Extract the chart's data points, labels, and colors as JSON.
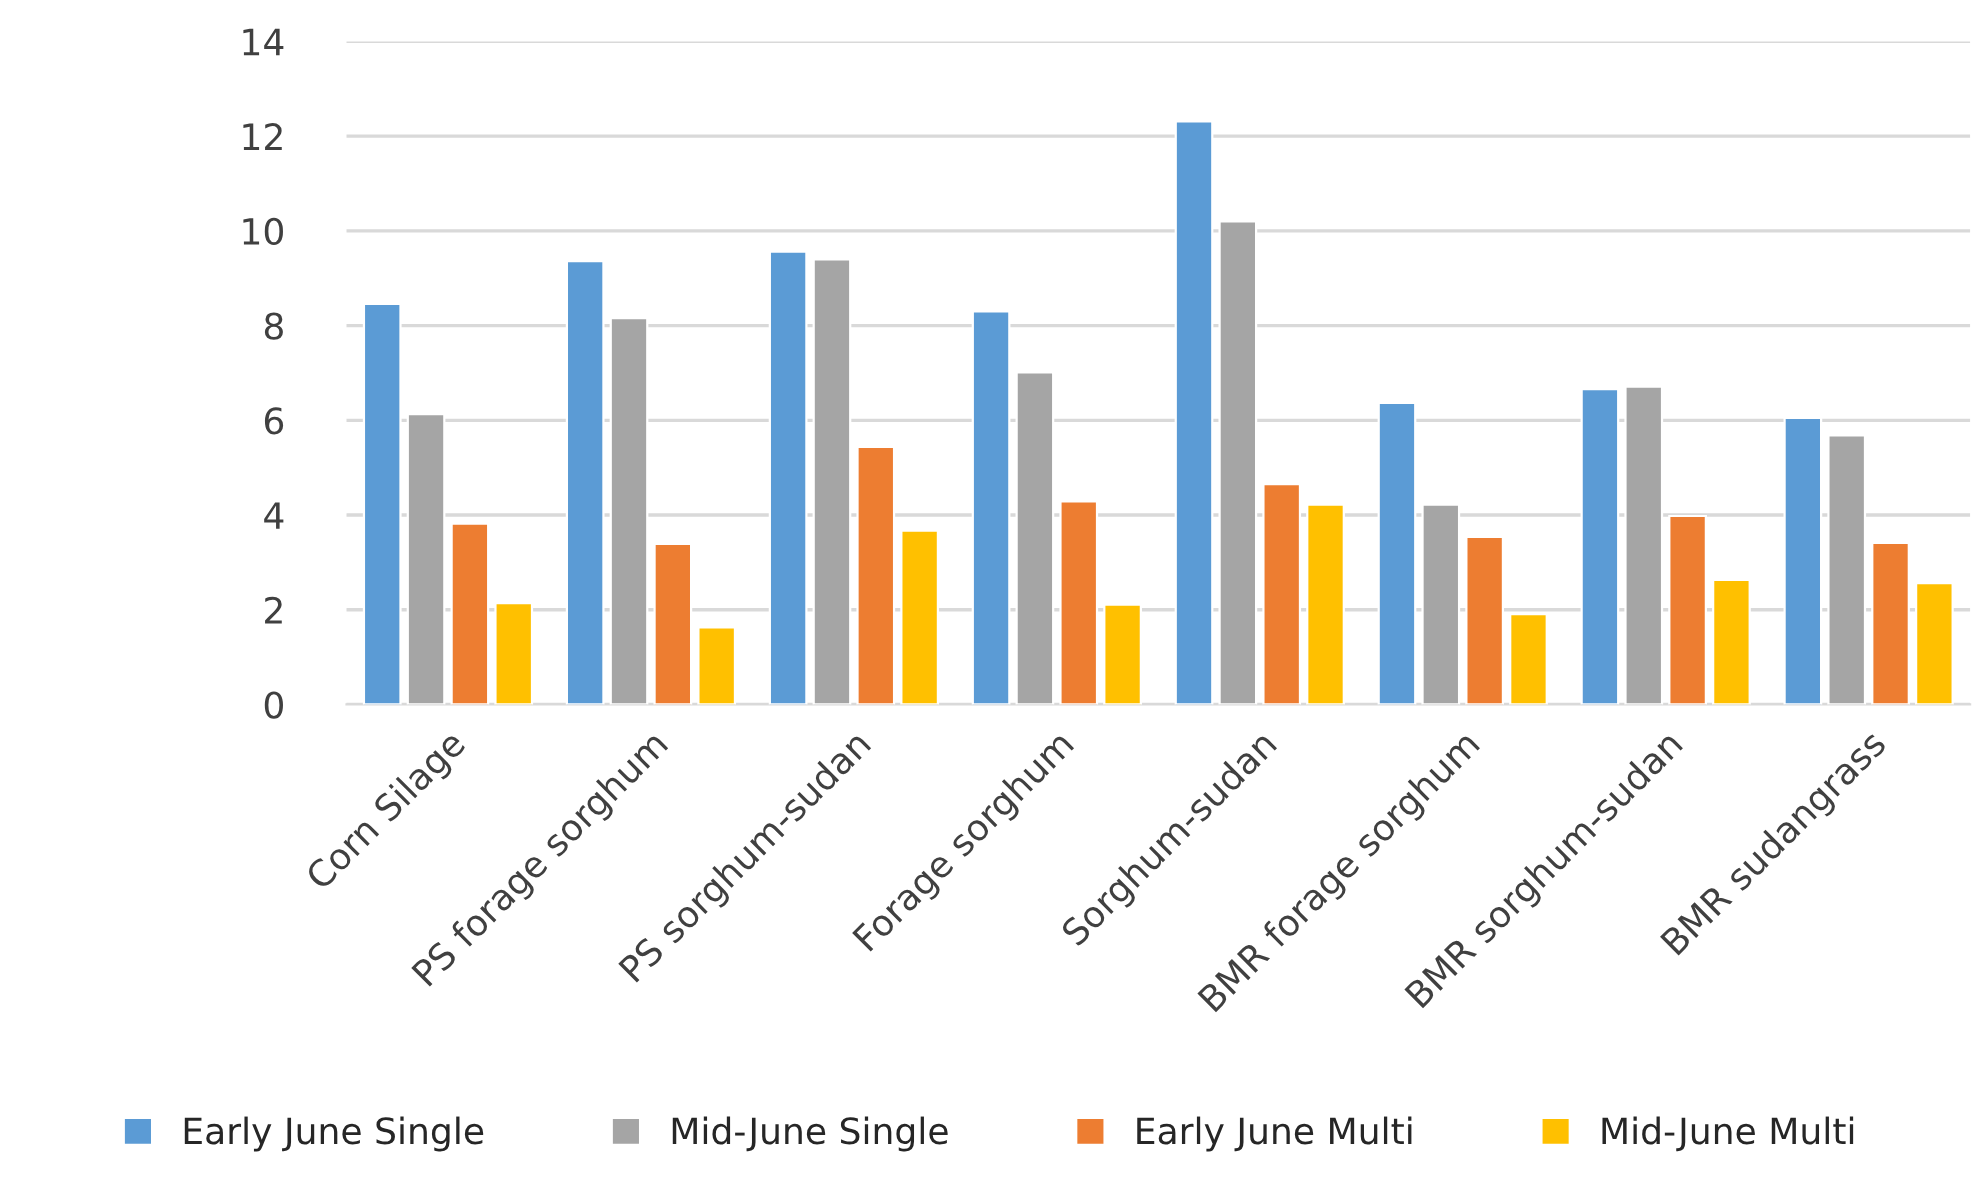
{
  "chart_data": {
    "type": "bar",
    "categories": [
      "Corn Silage",
      "PS forage sorghum",
      "PS sorghum-sudan",
      "Forage sorghum",
      "Sorghum-sudan",
      "BMR forage sorghum",
      "BMR sorghum-sudan",
      "BMR sudangrass"
    ],
    "series": [
      {
        "name": "Early June Single",
        "color": "#5b9bd5",
        "values": [
          8.46,
          9.36,
          9.56,
          8.3,
          12.31,
          6.37,
          6.66,
          6.05
        ]
      },
      {
        "name": "Mid-June Single",
        "color": "#a5a5a5",
        "values": [
          6.13,
          8.16,
          9.4,
          7.01,
          10.2,
          4.22,
          6.71,
          5.68
        ]
      },
      {
        "name": "Early June Multi",
        "color": "#ed7d31",
        "values": [
          3.82,
          3.39,
          5.44,
          4.29,
          4.65,
          3.54,
          3.98,
          3.41
        ]
      },
      {
        "name": "Mid-June Multi",
        "color": "#ffc000",
        "values": [
          2.14,
          1.63,
          3.67,
          2.11,
          4.22,
          1.91,
          2.63,
          2.56
        ]
      }
    ],
    "ylim": [
      0,
      14
    ],
    "yticks": [
      0,
      2,
      4,
      6,
      8,
      10,
      12,
      14
    ],
    "grid": "y",
    "legend": "bottom"
  }
}
